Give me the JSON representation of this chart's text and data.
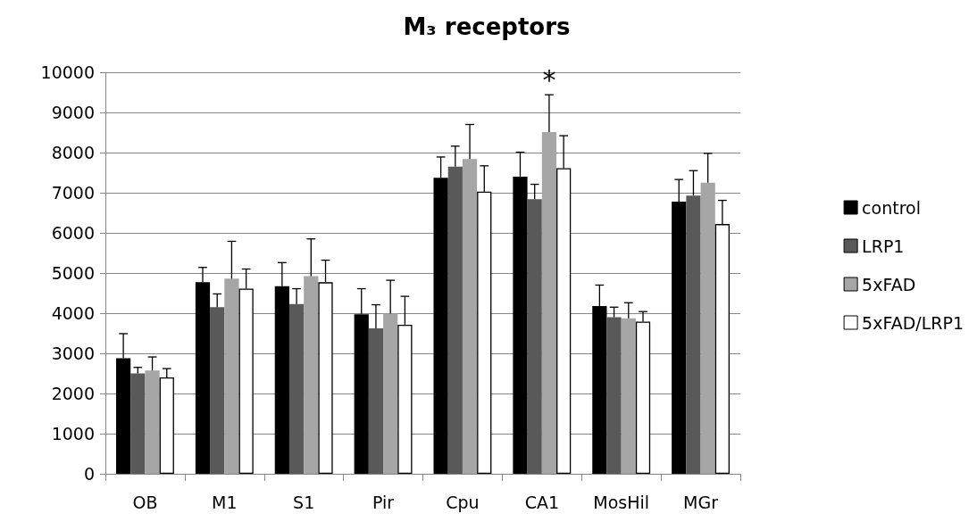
{
  "chart_data": {
    "type": "bar",
    "title": "M₃ receptors",
    "categories": [
      "OB",
      "M1",
      "S1",
      "Pir",
      "Cpu",
      "CA1",
      "MosHil",
      "MGr"
    ],
    "series": [
      {
        "name": "control",
        "color": "#000000",
        "values": [
          2880,
          4770,
          4670,
          3970,
          7370,
          7400,
          4180,
          6780
        ],
        "errors": [
          [
            2880,
            3490
          ],
          [
            4770,
            5140
          ],
          [
            4670,
            5260
          ],
          [
            3970,
            4610
          ],
          [
            7370,
            7890
          ],
          [
            7400,
            8010
          ],
          [
            4180,
            4700
          ],
          [
            6780,
            7330
          ]
        ]
      },
      {
        "name": "LRP1",
        "color": "#595959",
        "values": [
          2500,
          4150,
          4230,
          3620,
          7650,
          6840,
          3900,
          6930
        ],
        "errors": [
          [
            2500,
            2650
          ],
          [
            4150,
            4480
          ],
          [
            4230,
            4610
          ],
          [
            3620,
            4210
          ],
          [
            7650,
            8160
          ],
          [
            6840,
            7210
          ],
          [
            3900,
            4150
          ],
          [
            6930,
            7550
          ]
        ]
      },
      {
        "name": "5xFAD",
        "color": "#a6a6a6",
        "values": [
          2570,
          4860,
          4920,
          3990,
          7840,
          8510,
          3870,
          7250
        ],
        "errors": [
          [
            2570,
            2910
          ],
          [
            4860,
            5790
          ],
          [
            4920,
            5850
          ],
          [
            3990,
            4820
          ],
          [
            7840,
            8700
          ],
          [
            8510,
            9440
          ],
          [
            3870,
            4260
          ],
          [
            7250,
            7980
          ]
        ]
      },
      {
        "name": "5xFAD/LRP1",
        "color": "#ffffff",
        "values": [
          2400,
          4610,
          4770,
          3710,
          7030,
          7610,
          3790,
          6220
        ],
        "errors": [
          [
            2400,
            2620
          ],
          [
            4610,
            5100
          ],
          [
            4770,
            5320
          ],
          [
            3710,
            4420
          ],
          [
            7030,
            7670
          ],
          [
            7610,
            8420
          ],
          [
            3790,
            4040
          ],
          [
            6220,
            6810
          ]
        ]
      }
    ],
    "ylim": [
      0,
      10000
    ],
    "yticks": [
      0,
      1000,
      2000,
      3000,
      4000,
      5000,
      6000,
      7000,
      8000,
      9000,
      10000
    ],
    "grid": "y",
    "legend": "right",
    "annotations": [
      {
        "text": "*",
        "x": "CA1",
        "y": 9440
      }
    ]
  }
}
